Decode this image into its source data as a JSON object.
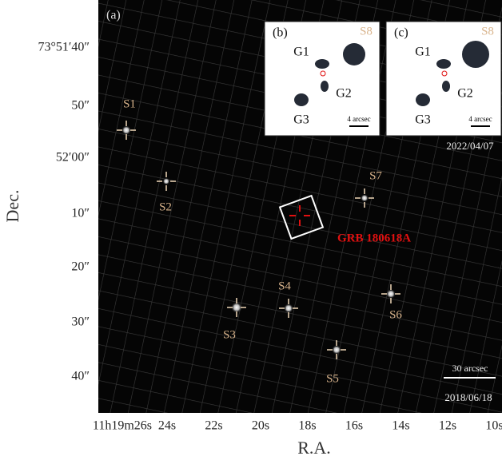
{
  "panel_a": {
    "label": "(a)",
    "grb": "GRB 180618A",
    "scale": "30 arcsec",
    "date": "2018/06/18",
    "sources": [
      "S1",
      "S2",
      "S3",
      "S4",
      "S5",
      "S6",
      "S7"
    ]
  },
  "panel_b": {
    "label": "(b)",
    "labels": [
      "G1",
      "G2",
      "G3",
      "S8"
    ],
    "scale": "4 arcsec"
  },
  "panel_c": {
    "label": "(c)",
    "labels": [
      "G1",
      "G2",
      "G3",
      "S8"
    ],
    "scale": "4 arcsec",
    "date": "2022/04/07"
  },
  "x_axis": {
    "title": "R.A.",
    "ticks": [
      "11h19m26s",
      "24s",
      "22s",
      "20s",
      "18s",
      "16s",
      "14s",
      "12s",
      "10s"
    ]
  },
  "y_axis": {
    "title": "Dec.",
    "ticks": [
      "73°51′40″",
      "50″",
      "52′00″",
      "10″",
      "20″",
      "30″",
      "40″"
    ]
  }
}
